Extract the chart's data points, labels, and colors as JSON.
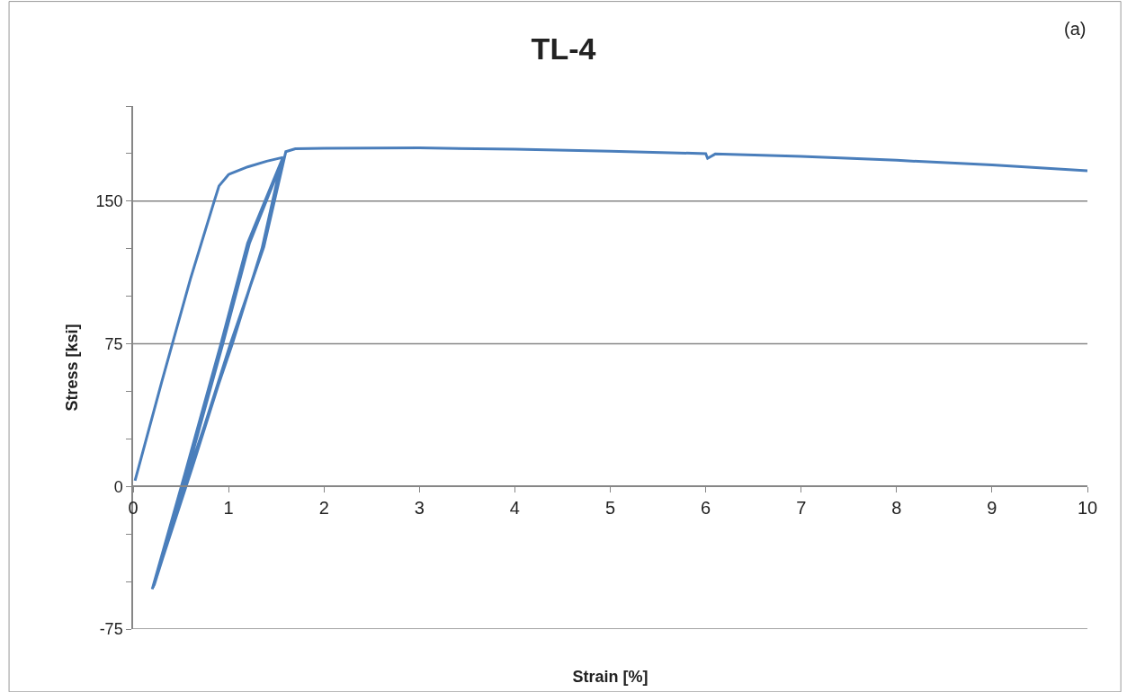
{
  "chart_data": {
    "type": "line",
    "title": "TL-4",
    "xlabel": "Strain [%]",
    "ylabel": "Stress [ksi]",
    "annotations": [
      "(a)"
    ],
    "series": [
      {
        "color": "#4a7ebb",
        "x": [
          0.02,
          0.3,
          0.6,
          0.85,
          0.9,
          1.0,
          1.2,
          1.4,
          1.57,
          1.2,
          0.92,
          0.55,
          0.2,
          0.6,
          1.04,
          1.35,
          1.55,
          1.2,
          0.93,
          0.56,
          0.21,
          0.62,
          1.03,
          1.36,
          1.57,
          1.22,
          0.94,
          0.57,
          0.22,
          0.61,
          1.02,
          1.37,
          1.6,
          1.7,
          2,
          3,
          4,
          5,
          6,
          6.02,
          6.1,
          7,
          8,
          9,
          10
        ],
        "values": [
          3,
          55,
          109,
          150,
          158,
          164,
          168,
          171,
          173,
          128,
          75,
          8,
          -54,
          10,
          75,
          125,
          170,
          128,
          75,
          8,
          -53,
          10,
          75,
          126,
          172,
          128,
          75,
          8,
          -52,
          10,
          75,
          126,
          176,
          177.5,
          177.8,
          178,
          177.3,
          176.3,
          175,
          172.5,
          174.8,
          173.5,
          171.5,
          169,
          166
        ]
      }
    ],
    "xlim": [
      0,
      10
    ],
    "xticks": [
      0,
      1,
      2,
      3,
      4,
      5,
      6,
      7,
      8,
      9,
      10
    ],
    "ylim": [
      -75,
      200
    ],
    "yticks": [
      -75,
      {
        "value": -50,
        "label": null
      },
      {
        "value": -25,
        "label": null
      },
      0,
      {
        "value": 25,
        "label": null
      },
      {
        "value": 50,
        "label": null
      },
      75,
      {
        "value": 100,
        "label": null
      },
      {
        "value": 125,
        "label": null
      },
      150,
      {
        "value": 175,
        "label": null
      },
      {
        "value": 200,
        "label": null
      }
    ],
    "grid": "y",
    "marker": "none",
    "line_style": "solid"
  }
}
